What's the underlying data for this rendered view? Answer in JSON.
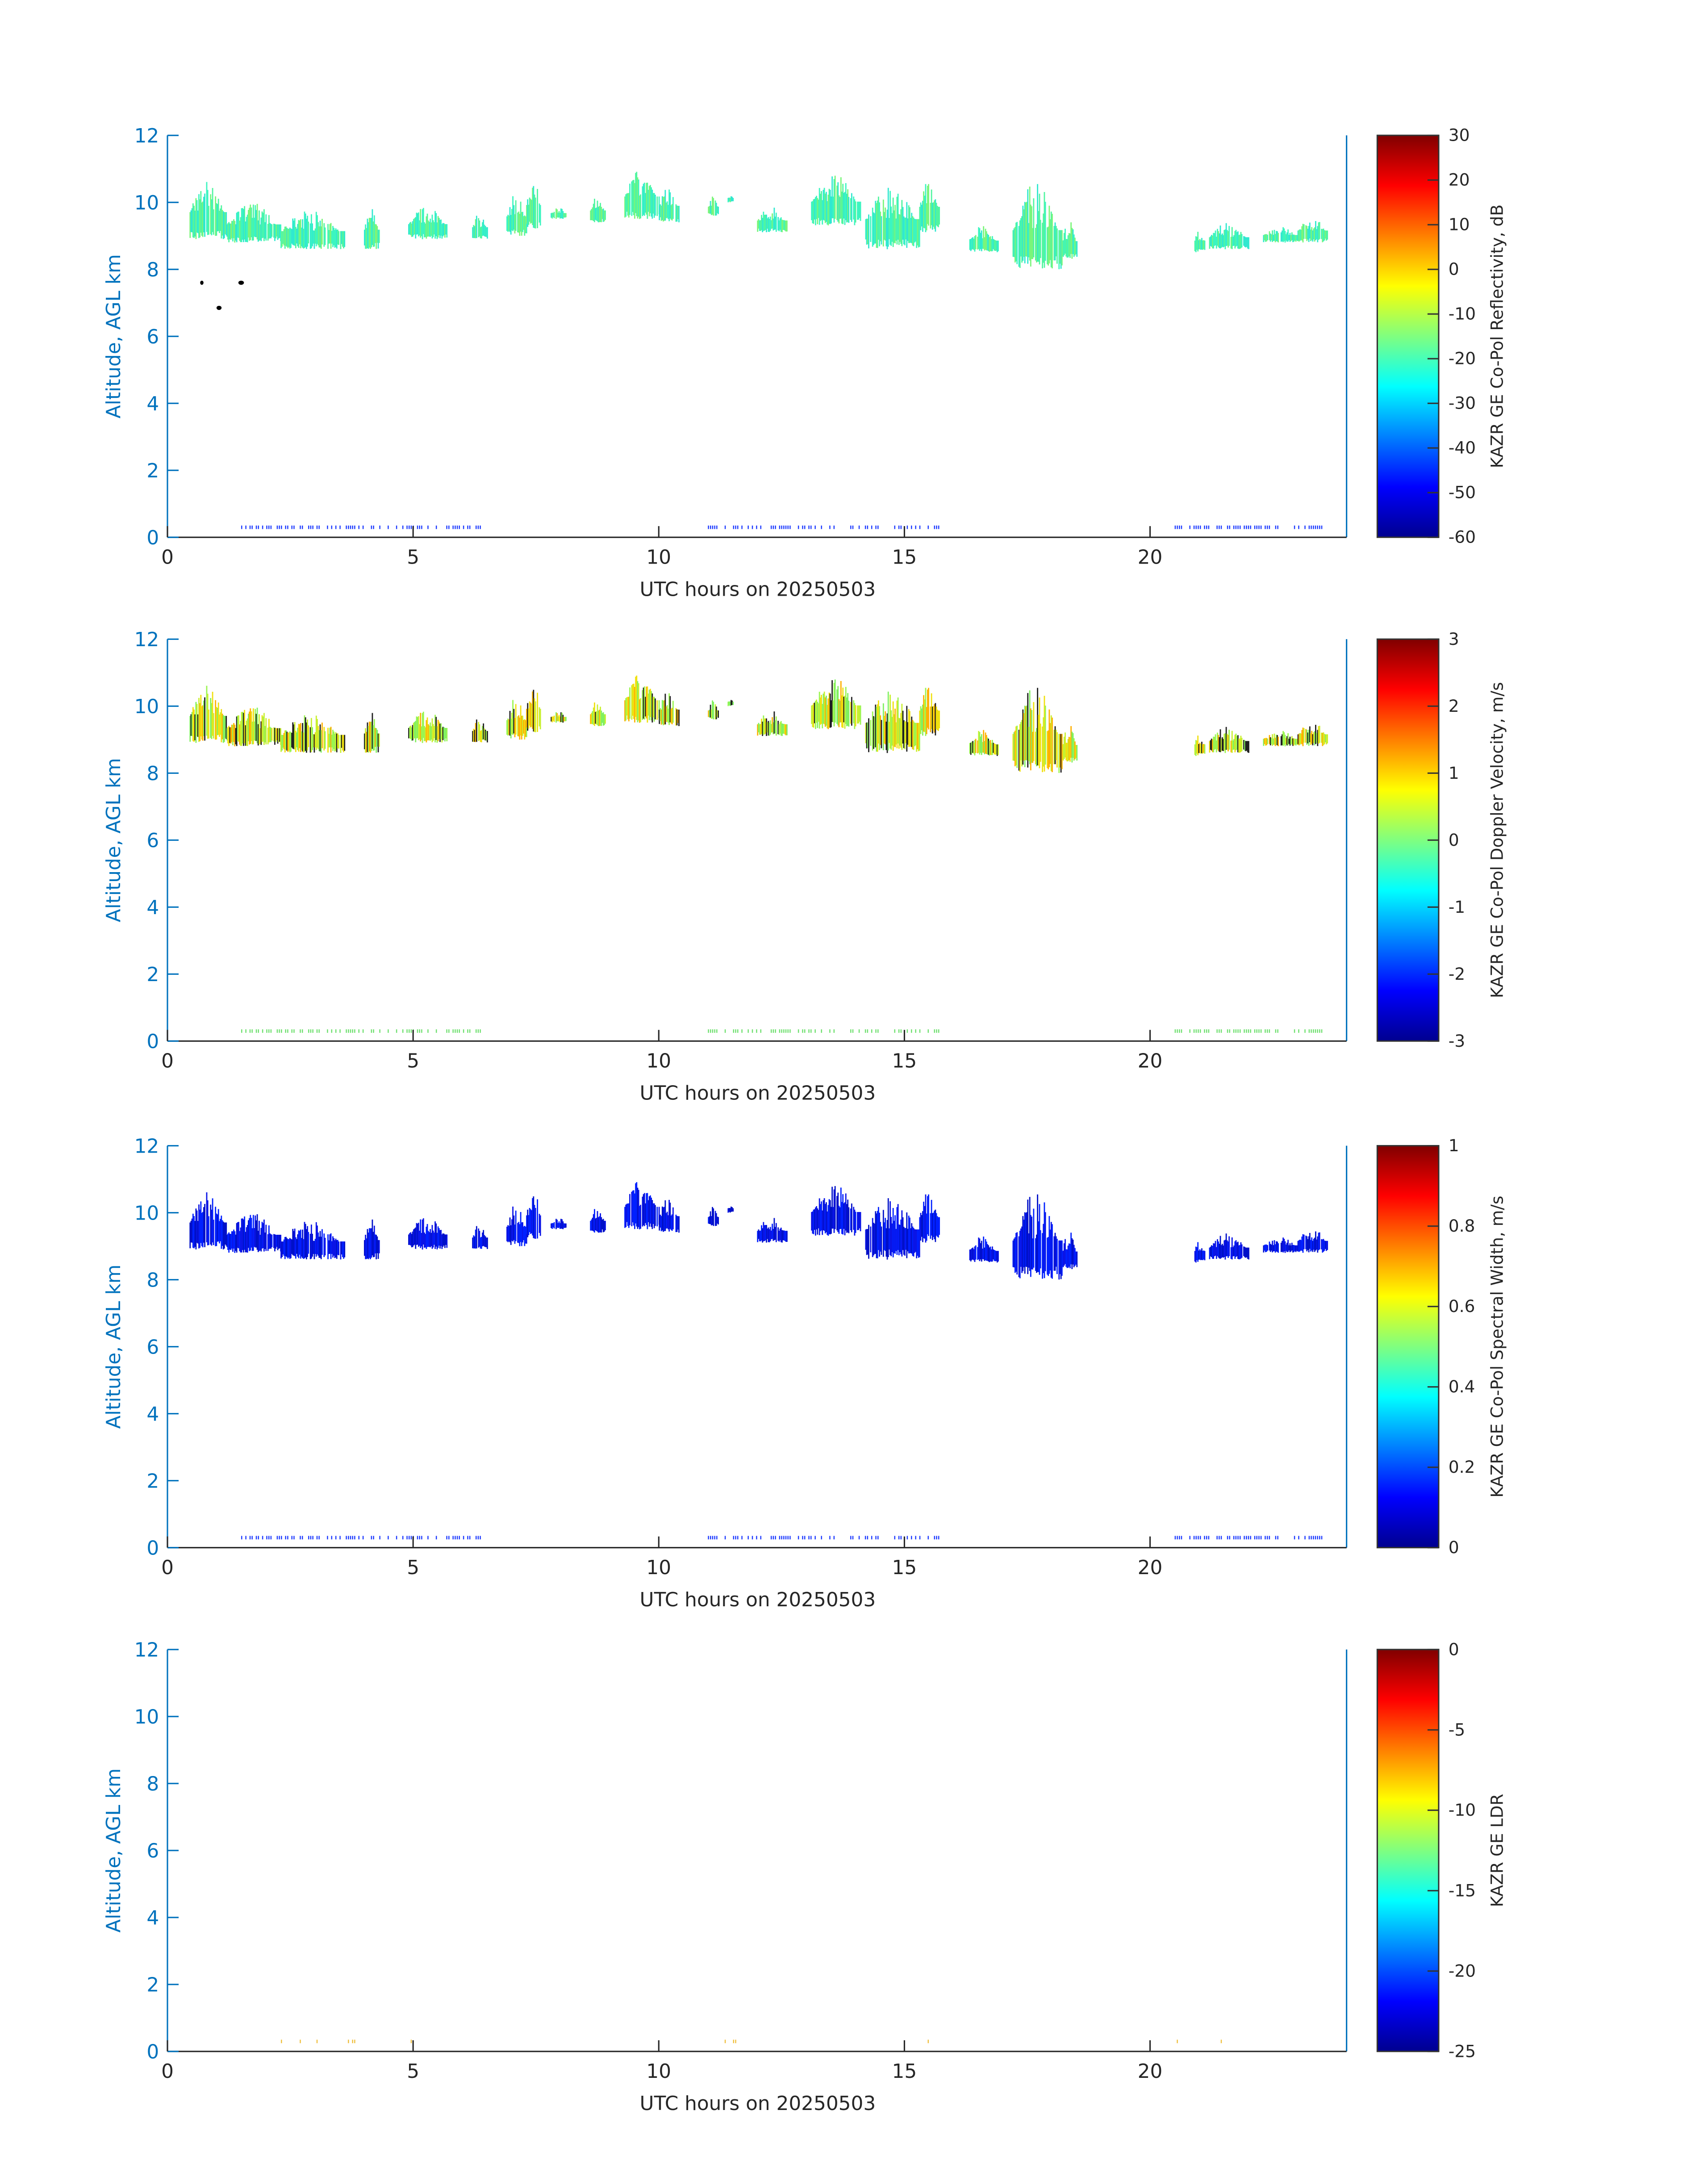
{
  "chart_data": {
    "type": "heatmap",
    "date": "20250503",
    "xlabel": "UTC hours on 20250503",
    "ylabel": "Altitude, AGL km",
    "xlim": [
      0,
      24
    ],
    "ylim": [
      0,
      12
    ],
    "xticks": [
      "0",
      "5",
      "10",
      "15",
      "20"
    ],
    "yticks": [
      "0",
      "2",
      "4",
      "6",
      "8",
      "10",
      "12"
    ],
    "cloud_segments_hours_km": [
      [
        0.45,
        1.2,
        8.9,
        10.7
      ],
      [
        1.2,
        2.3,
        8.8,
        10.0
      ],
      [
        2.3,
        3.6,
        8.6,
        9.8
      ],
      [
        4.0,
        4.3,
        8.6,
        9.9
      ],
      [
        4.9,
        5.7,
        8.9,
        9.9
      ],
      [
        6.2,
        6.5,
        8.9,
        9.7
      ],
      [
        6.9,
        7.3,
        9.0,
        10.3
      ],
      [
        7.3,
        7.6,
        9.2,
        10.8
      ],
      [
        7.8,
        8.1,
        9.5,
        9.9
      ],
      [
        8.6,
        8.9,
        9.4,
        10.2
      ],
      [
        9.3,
        10.0,
        9.5,
        11.0
      ],
      [
        10.0,
        10.4,
        9.4,
        10.5
      ],
      [
        11.0,
        11.2,
        9.6,
        10.2
      ],
      [
        11.4,
        11.5,
        10.0,
        10.3
      ],
      [
        12.0,
        12.6,
        9.1,
        9.9
      ],
      [
        13.1,
        14.1,
        9.3,
        10.9
      ],
      [
        14.2,
        15.3,
        8.6,
        10.6
      ],
      [
        15.3,
        15.7,
        9.1,
        10.8
      ],
      [
        16.3,
        16.9,
        8.5,
        9.3
      ],
      [
        17.2,
        18.2,
        8.0,
        10.6
      ],
      [
        18.2,
        18.5,
        8.3,
        9.5
      ],
      [
        20.9,
        21.1,
        8.5,
        9.3
      ],
      [
        21.2,
        22.0,
        8.6,
        9.4
      ],
      [
        22.3,
        23.0,
        8.8,
        9.3
      ],
      [
        23.0,
        23.6,
        8.8,
        9.6
      ]
    ],
    "surface_clutter_hours": [
      [
        1.5,
        6.5
      ],
      [
        11.0,
        15.8
      ],
      [
        20.5,
        23.5
      ]
    ],
    "panels": [
      {
        "name": "reflectivity",
        "colorbar_label": "KAZR GE Co-Pol Reflectivity, dB",
        "clim": [
          -60,
          30
        ],
        "cticks": [
          "30",
          "20",
          "10",
          "0",
          "-10",
          "-20",
          "-30",
          "-40",
          "-50",
          "-60"
        ],
        "cloud_colors": [
          "#3cf5c0",
          "#50f5a0",
          "#7af57a",
          "#30e8d0"
        ],
        "clutter_color": "#1f3cff",
        "has_data": true
      },
      {
        "name": "doppler-velocity",
        "colorbar_label": "KAZR GE Co-Pol Doppler Velocity, m/s",
        "clim": [
          -3,
          3
        ],
        "cticks": [
          "3",
          "2",
          "1",
          "0",
          "-1",
          "-2",
          "-3"
        ],
        "cloud_colors": [
          "#9af550",
          "#c8f030",
          "#f0e010",
          "#ffb000",
          "#80f060",
          "#202020"
        ],
        "clutter_color": "#70e070",
        "has_data": true
      },
      {
        "name": "spectral-width",
        "colorbar_label": "KAZR GE Co-Pol Spectral Width, m/s",
        "clim": [
          0,
          1
        ],
        "cticks": [
          "1",
          "0.8",
          "0.6",
          "0.4",
          "0.2",
          "0"
        ],
        "cloud_colors": [
          "#0a14e6",
          "#0020ff",
          "#0010c8"
        ],
        "clutter_color": "#1f3cff",
        "has_data": true
      },
      {
        "name": "ldr",
        "colorbar_label": "KAZR GE LDR",
        "clim": [
          -25,
          0
        ],
        "cticks": [
          "0",
          "-5",
          "-10",
          "-15",
          "-20",
          "-25"
        ],
        "cloud_colors": [],
        "clutter_color": "#f0c040",
        "has_data": false
      }
    ]
  }
}
